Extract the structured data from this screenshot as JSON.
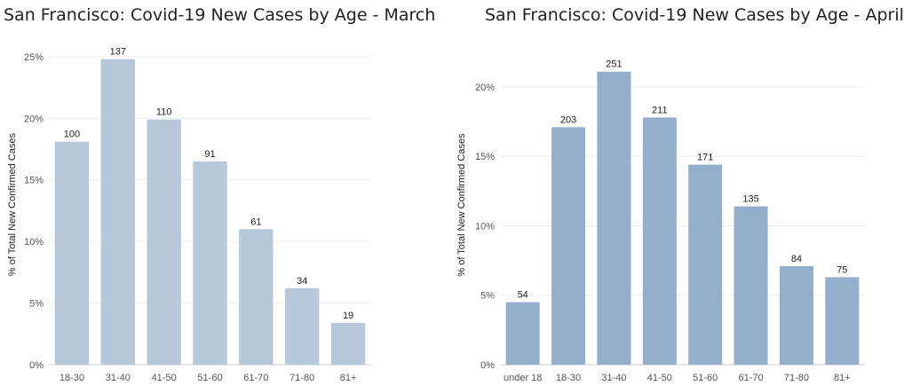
{
  "charts": [
    {
      "title": "San Francisco: Covid-19 New Cases by Age - March",
      "ylabel": "% of Total New Confirmed Cases",
      "bar_color": "#b8c8dc",
      "y_ticks": [
        "0%",
        "5%",
        "10%",
        "15%",
        "20%",
        "25%"
      ]
    },
    {
      "title": "San Francisco: Covid-19 New Cases by Age - April",
      "ylabel": "% of Total New Confirmed Cases",
      "bar_color": "#93afcc",
      "y_ticks": [
        "0%",
        "5%",
        "10%",
        "15%",
        "20%"
      ]
    }
  ],
  "chart_data": [
    {
      "type": "bar",
      "title": "San Francisco: Covid-19 New Cases by Age - March",
      "ylabel": "% of Total New Confirmed Cases",
      "xlabel": "",
      "categories": [
        "18-30",
        "31-40",
        "41-50",
        "51-60",
        "61-70",
        "71-80",
        "81+"
      ],
      "values": [
        18.1,
        24.8,
        19.9,
        16.5,
        11.0,
        6.2,
        3.4
      ],
      "data_labels": [
        "100",
        "137",
        "110",
        "91",
        "61",
        "34",
        "19"
      ],
      "ylim": [
        0,
        26
      ],
      "grid": true
    },
    {
      "type": "bar",
      "title": "San Francisco: Covid-19 New Cases by Age - April",
      "ylabel": "% of Total New Confirmed Cases",
      "xlabel": "",
      "categories": [
        "under 18",
        "18-30",
        "31-40",
        "41-50",
        "51-60",
        "61-70",
        "71-80",
        "81+"
      ],
      "values": [
        4.5,
        17.1,
        21.1,
        17.8,
        14.4,
        11.4,
        7.1,
        6.3
      ],
      "data_labels": [
        "54",
        "203",
        "251",
        "211",
        "171",
        "135",
        "84",
        "75"
      ],
      "ylim": [
        0,
        23
      ],
      "grid": true
    }
  ]
}
